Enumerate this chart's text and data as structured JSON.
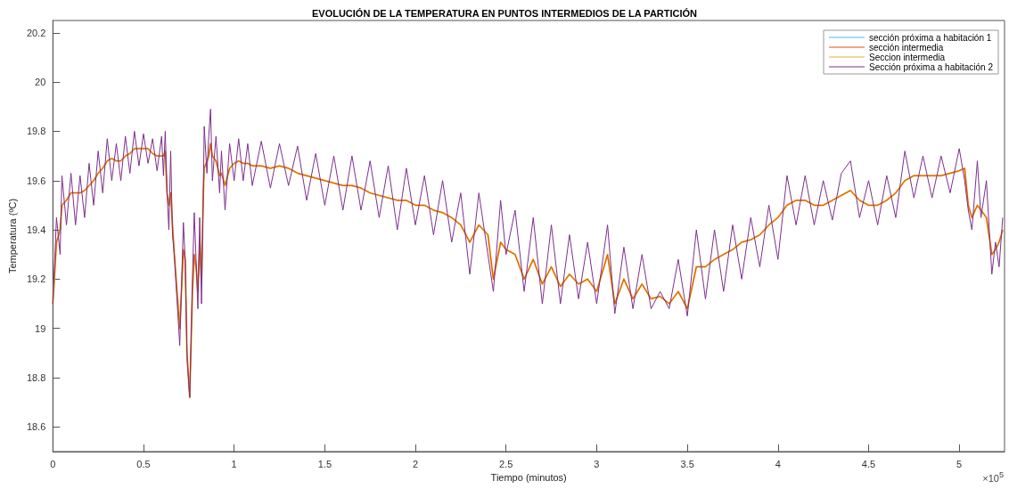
{
  "chart_data": {
    "type": "line",
    "title": "EVOLUCIÓN DE LA TEMPERATURA EN PUNTOS INTERMEDIOS DE LA PARTICIÓN",
    "xlabel": "Tiempo (minutos)",
    "ylabel": "Temperatura (ºC)",
    "annotations": [
      "×10$^{5}$"
    ],
    "x": [
      0,
      0.02,
      0.04,
      0.05,
      0.075,
      0.1,
      0.125,
      0.15,
      0.175,
      0.2,
      0.225,
      0.25,
      0.275,
      0.3,
      0.325,
      0.35,
      0.375,
      0.4,
      0.425,
      0.45,
      0.475,
      0.5,
      0.525,
      0.55,
      0.575,
      0.6,
      0.61,
      0.62,
      0.63,
      0.64,
      0.65,
      0.66,
      0.67,
      0.7,
      0.72,
      0.73,
      0.74,
      0.755,
      0.77,
      0.78,
      0.79,
      0.8,
      0.81,
      0.82,
      0.83,
      0.835,
      0.85,
      0.86,
      0.87,
      0.88,
      0.9,
      0.92,
      0.93,
      0.95,
      0.975,
      1,
      1.025,
      1.05,
      1.075,
      1.1,
      1.15,
      1.2,
      1.25,
      1.3,
      1.35,
      1.4,
      1.45,
      1.5,
      1.55,
      1.6,
      1.65,
      1.7,
      1.75,
      1.8,
      1.85,
      1.9,
      1.95,
      2,
      2.05,
      2.1,
      2.15,
      2.2,
      2.25,
      2.3,
      2.35,
      2.4,
      2.43,
      2.47,
      2.5,
      2.55,
      2.6,
      2.65,
      2.7,
      2.75,
      2.8,
      2.85,
      2.9,
      2.95,
      3,
      3.06,
      3.1,
      3.15,
      3.2,
      3.25,
      3.3,
      3.35,
      3.4,
      3.45,
      3.5,
      3.55,
      3.6,
      3.65,
      3.7,
      3.75,
      3.8,
      3.85,
      3.9,
      3.95,
      4,
      4.05,
      4.1,
      4.15,
      4.2,
      4.25,
      4.3,
      4.35,
      4.4,
      4.45,
      4.5,
      4.55,
      4.6,
      4.65,
      4.7,
      4.75,
      4.8,
      4.85,
      4.9,
      4.95,
      5,
      5.03,
      5.05,
      5.07,
      5.1,
      5.12,
      5.15,
      5.18,
      5.2,
      5.22,
      5.24
    ],
    "series": [
      {
        "name": "sección próxima a habitación 1",
        "color": "#4dbeee",
        "values": [
          null,
          null,
          null,
          null,
          null,
          null,
          null,
          null,
          null,
          null,
          null,
          null,
          null,
          null,
          null,
          null,
          null,
          null,
          null,
          null,
          null,
          null,
          null,
          null,
          null,
          null,
          null,
          null,
          null,
          null,
          null,
          null,
          null,
          null,
          null,
          null,
          null,
          null,
          null,
          null,
          null,
          null,
          null,
          null,
          null,
          null,
          null,
          null,
          null,
          null,
          null,
          null,
          null,
          null,
          null,
          null,
          null,
          null,
          null,
          null,
          null,
          null,
          null,
          null,
          null,
          null,
          null,
          null,
          null,
          null,
          null,
          null,
          null,
          null,
          null,
          null,
          null,
          null,
          null,
          null,
          null,
          null,
          null,
          null,
          null,
          null,
          null,
          null,
          null,
          null,
          null,
          null,
          null,
          null,
          null,
          null,
          null,
          null,
          null,
          null,
          null,
          null,
          null,
          null,
          null,
          null,
          null,
          null,
          null,
          null,
          null,
          null,
          null,
          null,
          null,
          null,
          null,
          null,
          null,
          null,
          null,
          null,
          null,
          null,
          null,
          null,
          null,
          null,
          null,
          null,
          null,
          null,
          null,
          null,
          null,
          null,
          null,
          null,
          null,
          null,
          null,
          null,
          null,
          null,
          null,
          null,
          null,
          null,
          null
        ]
      },
      {
        "name": "sección intermedia",
        "color": "#d95319",
        "values": [
          19.1,
          19.35,
          19.4,
          19.5,
          19.52,
          19.55,
          19.55,
          19.55,
          19.56,
          19.58,
          19.6,
          19.63,
          19.65,
          19.68,
          19.69,
          19.68,
          19.68,
          19.7,
          19.71,
          19.73,
          19.73,
          19.73,
          19.73,
          19.71,
          19.7,
          19.7,
          19.7,
          19.72,
          19.55,
          19.5,
          19.55,
          19.42,
          19.3,
          19.0,
          19.32,
          19.28,
          18.9,
          18.72,
          19.15,
          19.3,
          19.25,
          19.15,
          19.35,
          19.2,
          19.55,
          19.65,
          19.68,
          19.7,
          19.75,
          19.7,
          19.68,
          19.62,
          19.63,
          19.58,
          19.65,
          19.67,
          19.68,
          19.67,
          19.67,
          19.66,
          19.66,
          19.65,
          19.66,
          19.65,
          19.63,
          19.62,
          19.61,
          19.6,
          19.59,
          19.58,
          19.58,
          19.57,
          19.55,
          19.54,
          19.53,
          19.52,
          19.52,
          19.5,
          19.5,
          19.48,
          19.47,
          19.45,
          19.42,
          19.35,
          19.42,
          19.38,
          19.2,
          19.35,
          19.32,
          19.3,
          19.2,
          19.28,
          19.18,
          19.25,
          19.17,
          19.22,
          19.18,
          19.2,
          19.15,
          19.3,
          19.1,
          19.2,
          19.12,
          19.18,
          19.12,
          19.13,
          19.1,
          19.15,
          19.08,
          19.25,
          19.25,
          19.28,
          19.3,
          19.32,
          19.35,
          19.36,
          19.38,
          19.42,
          19.45,
          19.5,
          19.52,
          19.52,
          19.5,
          19.5,
          19.52,
          19.54,
          19.56,
          19.52,
          19.5,
          19.5,
          19.52,
          19.55,
          19.6,
          19.62,
          19.62,
          19.62,
          19.62,
          19.63,
          19.64,
          19.65,
          19.5,
          19.45,
          19.5,
          19.48,
          19.45,
          19.3,
          19.32,
          19.35,
          19.4
        ]
      },
      {
        "name": "Seccion intermedia",
        "color": "#edb120",
        "values": [
          19.1,
          19.35,
          19.4,
          19.5,
          19.52,
          19.55,
          19.55,
          19.55,
          19.56,
          19.58,
          19.6,
          19.63,
          19.65,
          19.68,
          19.69,
          19.68,
          19.68,
          19.7,
          19.71,
          19.73,
          19.73,
          19.73,
          19.73,
          19.71,
          19.7,
          19.7,
          19.7,
          19.72,
          19.55,
          19.5,
          19.55,
          19.42,
          19.3,
          19.0,
          19.32,
          19.28,
          18.9,
          18.72,
          19.15,
          19.3,
          19.25,
          19.15,
          19.35,
          19.2,
          19.55,
          19.65,
          19.68,
          19.7,
          19.75,
          19.7,
          19.68,
          19.62,
          19.63,
          19.58,
          19.65,
          19.67,
          19.68,
          19.67,
          19.67,
          19.66,
          19.66,
          19.65,
          19.66,
          19.65,
          19.63,
          19.62,
          19.61,
          19.6,
          19.59,
          19.58,
          19.58,
          19.57,
          19.55,
          19.54,
          19.53,
          19.52,
          19.52,
          19.5,
          19.5,
          19.48,
          19.47,
          19.45,
          19.42,
          19.35,
          19.42,
          19.38,
          19.2,
          19.35,
          19.32,
          19.3,
          19.2,
          19.28,
          19.18,
          19.25,
          19.17,
          19.22,
          19.18,
          19.2,
          19.15,
          19.3,
          19.1,
          19.2,
          19.12,
          19.18,
          19.12,
          19.13,
          19.1,
          19.15,
          19.08,
          19.25,
          19.25,
          19.28,
          19.3,
          19.32,
          19.35,
          19.36,
          19.38,
          19.42,
          19.45,
          19.5,
          19.52,
          19.52,
          19.5,
          19.5,
          19.52,
          19.54,
          19.56,
          19.52,
          19.5,
          19.5,
          19.52,
          19.55,
          19.6,
          19.62,
          19.62,
          19.62,
          19.62,
          19.63,
          19.64,
          19.65,
          19.5,
          19.45,
          19.5,
          19.48,
          19.45,
          19.3,
          19.32,
          19.35,
          19.4
        ]
      },
      {
        "name": "Sección próxima a habitación 2",
        "color": "#7e2f8e",
        "values": [
          19.1,
          19.45,
          19.3,
          19.62,
          19.42,
          19.63,
          19.42,
          19.62,
          19.45,
          19.67,
          19.5,
          19.72,
          19.55,
          19.77,
          19.6,
          19.75,
          19.6,
          19.78,
          19.63,
          19.8,
          19.66,
          19.79,
          19.67,
          19.77,
          19.64,
          19.78,
          19.62,
          19.8,
          19.55,
          19.4,
          19.72,
          19.38,
          19.3,
          18.93,
          19.43,
          19.28,
          18.88,
          18.72,
          19.2,
          19.47,
          19.28,
          19.08,
          19.45,
          19.1,
          19.55,
          19.82,
          19.63,
          19.78,
          19.89,
          19.6,
          19.78,
          19.55,
          19.72,
          19.48,
          19.75,
          19.6,
          19.77,
          19.6,
          19.75,
          19.58,
          19.76,
          19.57,
          19.75,
          19.58,
          19.74,
          19.52,
          19.71,
          19.5,
          19.7,
          19.48,
          19.7,
          19.48,
          19.68,
          19.45,
          19.66,
          19.4,
          19.65,
          19.42,
          19.62,
          19.38,
          19.6,
          19.35,
          19.55,
          19.22,
          19.55,
          19.3,
          19.15,
          19.52,
          19.3,
          19.48,
          19.15,
          19.45,
          19.1,
          19.42,
          19.1,
          19.38,
          19.12,
          19.35,
          19.1,
          19.42,
          19.06,
          19.33,
          19.08,
          19.3,
          19.08,
          19.15,
          19.08,
          19.28,
          19.05,
          19.4,
          19.12,
          19.4,
          19.15,
          19.42,
          19.2,
          19.45,
          19.25,
          19.5,
          19.28,
          19.62,
          19.42,
          19.62,
          19.42,
          19.6,
          19.44,
          19.63,
          19.68,
          19.45,
          19.6,
          19.42,
          19.62,
          19.45,
          19.72,
          19.53,
          19.7,
          19.53,
          19.7,
          19.55,
          19.73,
          19.6,
          19.48,
          19.4,
          19.68,
          19.45,
          19.6,
          19.22,
          19.35,
          19.25,
          19.45
        ]
      }
    ],
    "xlim": [
      0,
      5.25
    ],
    "xticks": [
      0,
      0.5,
      1,
      1.5,
      2,
      2.5,
      3,
      3.5,
      4,
      4.5,
      5
    ],
    "ylim": [
      18.5,
      20.25
    ],
    "yticks": [
      18.6,
      18.8,
      19,
      19.2,
      19.4,
      19.6,
      19.8,
      20,
      20.2
    ],
    "legend": "top right",
    "grid": false,
    "marker": "none",
    "line_style": "solid"
  }
}
